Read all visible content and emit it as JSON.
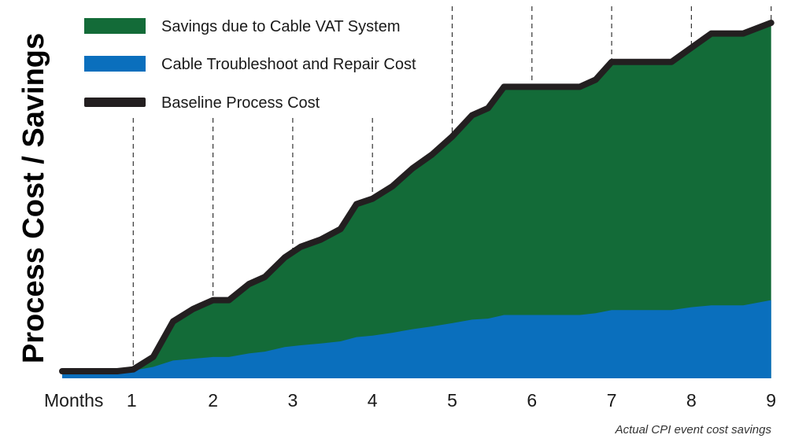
{
  "chart_data": {
    "type": "area",
    "title": "",
    "xlabel": "Months",
    "ylabel": "Process Cost / Savings",
    "caption": "Actual CPI event cost savings",
    "xlim": [
      0,
      9
    ],
    "ylim": [
      0,
      100
    ],
    "x_ticks": [
      "1",
      "2",
      "3",
      "4",
      "5",
      "6",
      "7",
      "8",
      "9"
    ],
    "legend_position": "top-left",
    "grid": false,
    "colors": {
      "savings": "#136b38",
      "repair": "#0a6fbd",
      "baseline": "#231f20"
    },
    "series": [
      {
        "name": "Savings due to Cable VAT System",
        "key": "savings",
        "style": "area",
        "x": [
          0,
          0.2,
          0.8,
          1.0,
          1.25,
          1.5,
          1.75,
          2.0,
          2.2,
          2.45,
          2.65,
          2.9,
          3.1,
          3.35,
          3.6,
          3.8,
          4.0,
          4.25,
          4.5,
          4.75,
          5.0,
          5.25,
          5.45,
          5.65,
          6.0,
          6.6,
          6.8,
          7.0,
          7.35,
          7.75,
          8.0,
          8.25,
          8.65,
          9.0
        ],
        "values": [
          2,
          2,
          2,
          2.5,
          6,
          16,
          19.5,
          22,
          22,
          26.5,
          28.5,
          34,
          37,
          39,
          42,
          49,
          50.5,
          54,
          59,
          63,
          68,
          74,
          76,
          82,
          82,
          82,
          84,
          89,
          89,
          89,
          93,
          97,
          97,
          100
        ]
      },
      {
        "name": "Cable Troubleshoot and Repair Cost",
        "key": "repair",
        "style": "area",
        "x": [
          0,
          0.2,
          0.8,
          1.0,
          1.25,
          1.5,
          1.75,
          2.0,
          2.2,
          2.45,
          2.65,
          2.9,
          3.1,
          3.35,
          3.6,
          3.8,
          4.0,
          4.25,
          4.5,
          4.75,
          5.0,
          5.25,
          5.45,
          5.65,
          6.0,
          6.6,
          6.8,
          7.0,
          7.35,
          7.75,
          8.0,
          8.25,
          8.65,
          9.0
        ],
        "values": [
          2,
          2,
          2,
          2.2,
          3.2,
          5,
          5.5,
          6,
          6,
          7,
          7.5,
          8.8,
          9.3,
          9.8,
          10.4,
          11.6,
          12,
          12.8,
          13.8,
          14.6,
          15.5,
          16.5,
          16.8,
          17.8,
          17.8,
          17.8,
          18.3,
          19.2,
          19.2,
          19.2,
          20,
          20.5,
          20.5,
          22
        ]
      },
      {
        "name": "Baseline Process Cost",
        "key": "baseline",
        "style": "line",
        "x": [
          0,
          0.2,
          0.8,
          1.0,
          1.25,
          1.5,
          1.75,
          2.0,
          2.2,
          2.45,
          2.65,
          2.9,
          3.1,
          3.35,
          3.6,
          3.8,
          4.0,
          4.25,
          4.5,
          4.75,
          5.0,
          5.25,
          5.45,
          5.65,
          6.0,
          6.6,
          6.8,
          7.0,
          7.35,
          7.75,
          8.0,
          8.25,
          8.65,
          9.0
        ],
        "values": [
          2,
          2,
          2,
          2.5,
          6,
          16,
          19.5,
          22,
          22,
          26.5,
          28.5,
          34,
          37,
          39,
          42,
          49,
          50.5,
          54,
          59,
          63,
          68,
          74,
          76,
          82,
          82,
          82,
          84,
          89,
          89,
          89,
          93,
          97,
          97,
          100
        ]
      }
    ],
    "legend": [
      {
        "label": "Savings due to Cable VAT System",
        "key": "savings",
        "swatch": "box"
      },
      {
        "label": "Cable Troubleshoot and Repair Cost",
        "key": "repair",
        "swatch": "box"
      },
      {
        "label": "Baseline Process Cost",
        "key": "baseline",
        "swatch": "bar"
      }
    ],
    "month_markers": [
      1,
      2,
      3,
      4,
      5,
      6,
      7,
      8,
      9
    ]
  }
}
